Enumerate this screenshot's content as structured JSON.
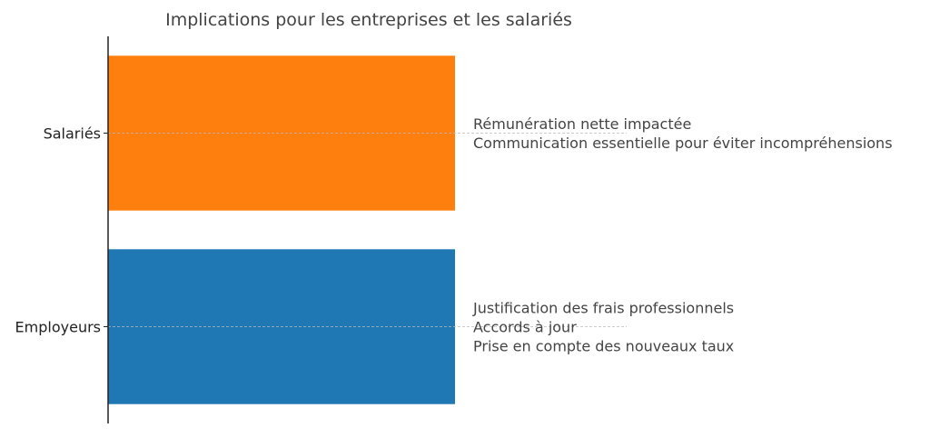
{
  "chart_data": {
    "type": "bar",
    "orientation": "horizontal",
    "title": "Implications pour les entreprises et les salariés",
    "xlabel": "",
    "ylabel": "",
    "xlim": [
      0,
      1
    ],
    "grid": "y-dashed",
    "categories": [
      "Employeurs",
      "Salariés"
    ],
    "values": [
      1,
      1
    ],
    "colors": [
      "#1f77b4",
      "#ff7f0e"
    ],
    "annotations": [
      [
        "Justification des frais professionnels",
        "Accords à jour",
        "Prise en compte des nouveaux taux"
      ],
      [
        "Rémunération nette impactée",
        "Communication essentielle pour éviter incompréhensions"
      ]
    ]
  }
}
